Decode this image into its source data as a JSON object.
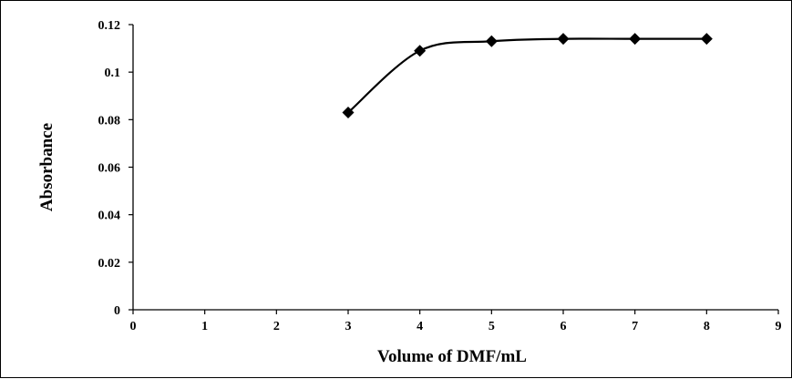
{
  "chart_data": {
    "type": "line",
    "x": [
      3,
      4,
      5,
      6,
      7,
      8
    ],
    "series": [
      {
        "values": [
          0.083,
          0.109,
          0.113,
          0.114,
          0.114,
          0.114
        ]
      }
    ],
    "xlabel": "Volume  of DMF/mL",
    "ylabel": "Absorbance",
    "xlim": [
      0,
      9
    ],
    "ylim": [
      0,
      0.12
    ],
    "xticks": [
      "0",
      "1",
      "2",
      "3",
      "4",
      "5",
      "6",
      "7",
      "8",
      "9"
    ],
    "yticks": [
      "0",
      "0.02",
      "0.04",
      "0.06",
      "0.08",
      "0.1",
      "0.12"
    ],
    "grid": false,
    "marker": "diamond",
    "line_color": "#000000",
    "smooth": true
  }
}
